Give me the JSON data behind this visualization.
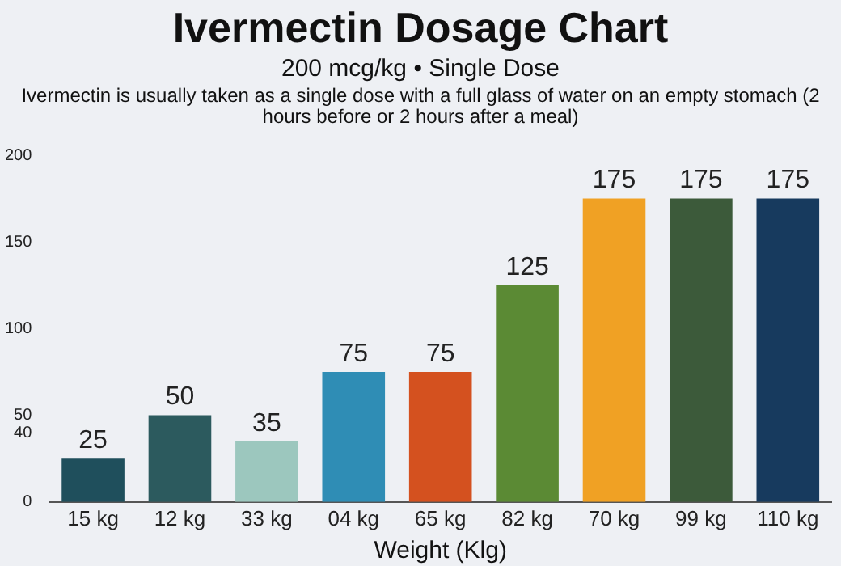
{
  "chart_data": {
    "type": "bar",
    "title": "Ivermectin Dosage Chart",
    "subtitle": "200 mcg/kg • Single Dose",
    "annotations": [
      "Ivermectin is usually taken as a single dose with a full glass of water on an empty stomach (2 hours before or 2 hours after a meal)"
    ],
    "xlabel": "Weight (Klg)",
    "categories": [
      "15 kg",
      "12 kg",
      "33 kg",
      "04 kg",
      "65 kg",
      "82 kg",
      "70 kg",
      "99 kg",
      "110 kg"
    ],
    "values": [
      25,
      50,
      35,
      75,
      75,
      125,
      175,
      175,
      175
    ],
    "colors": [
      "#1f4f5c",
      "#2c5a5e",
      "#9cc7be",
      "#2f8db5",
      "#d4511f",
      "#5b8a34",
      "#f0a124",
      "#3c5a3a",
      "#173a5e"
    ],
    "data_labels": true,
    "ylim": [
      0,
      200
    ],
    "yticks": [
      0,
      40,
      50,
      100,
      150,
      200
    ],
    "grid": false
  }
}
